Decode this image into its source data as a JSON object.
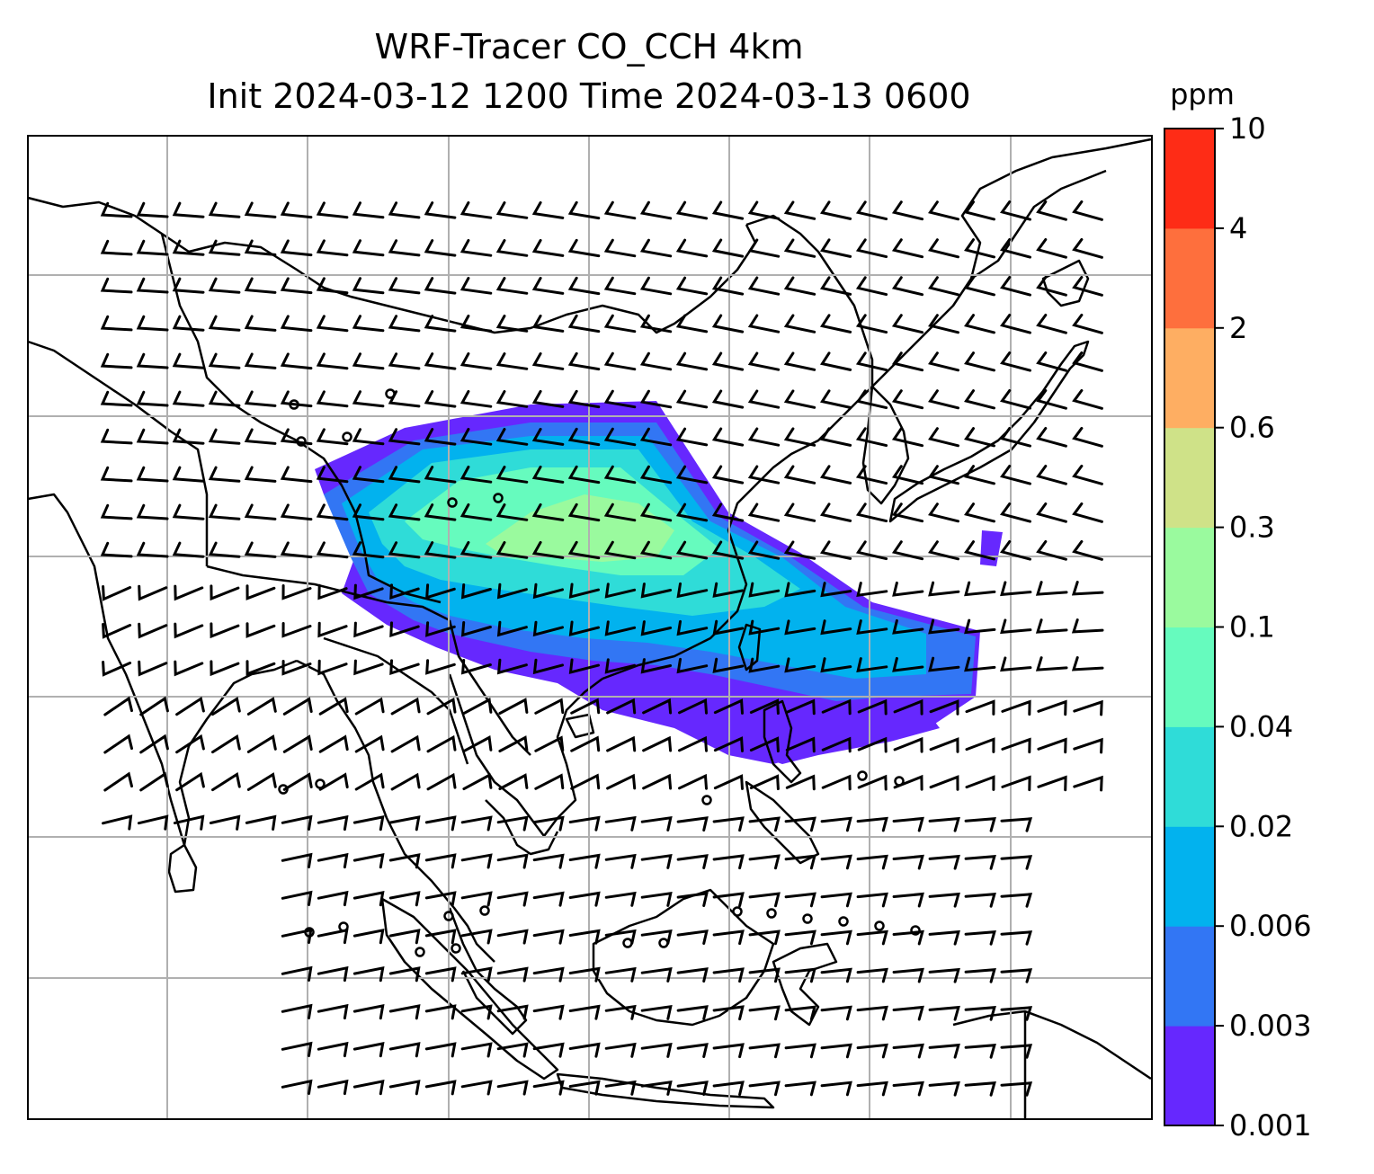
{
  "title": {
    "line1": "WRF-Tracer CO_CCH 4km",
    "line2": "Init 2024-03-12 1200 Time 2024-03-13 0600"
  },
  "colorbar": {
    "unit": "ppm",
    "levels": [
      "0.001",
      "0.003",
      "0.006",
      "0.02",
      "0.04",
      "0.1",
      "0.3",
      "0.6",
      "2",
      "4",
      "10"
    ],
    "colors": [
      "#6628fe",
      "#3276f4",
      "#02b2ee",
      "#2fdcd8",
      "#66fbbe",
      "#9afa9e",
      "#cfe288",
      "#feae62",
      "#fe6f3d",
      "#fe2c16"
    ]
  },
  "map": {
    "projection_grid": "on",
    "tracer_field": "CO_CCH",
    "wind_barbs": "shown",
    "calm_wind_markers": "shown"
  }
}
